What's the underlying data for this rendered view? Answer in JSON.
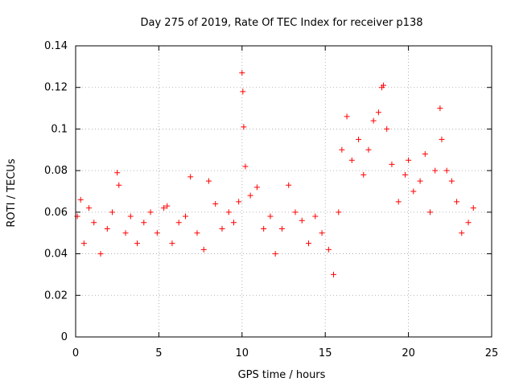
{
  "chart_data": {
    "type": "scatter",
    "title": "Day 275 of 2019, Rate Of TEC Index for receiver p138",
    "xlabel": "GPS time / hours",
    "ylabel": "ROTI / TECUs",
    "xlim": [
      0,
      25
    ],
    "ylim": [
      0,
      0.14
    ],
    "xticks": [
      0,
      5,
      10,
      15,
      20,
      25
    ],
    "xtick_labels": [
      "0",
      "5",
      "10",
      "15",
      "20",
      "25"
    ],
    "yticks": [
      0,
      0.02,
      0.04,
      0.06,
      0.08,
      0.1,
      0.12,
      0.14
    ],
    "ytick_labels": [
      "0",
      "0.02",
      "0.04",
      "0.06",
      "0.08",
      "0.1",
      "0.12",
      "0.14"
    ],
    "grid": true,
    "marker": "+",
    "color": "#ff0000",
    "series": [
      {
        "name": "ROTI",
        "x": [
          0.1,
          0.3,
          0.5,
          0.8,
          1.1,
          1.5,
          1.9,
          2.2,
          2.5,
          2.6,
          3.0,
          3.3,
          3.7,
          4.1,
          4.5,
          4.9,
          5.3,
          5.5,
          5.8,
          6.2,
          6.6,
          6.9,
          7.3,
          7.7,
          8.0,
          8.4,
          8.8,
          9.2,
          9.5,
          9.8,
          10.0,
          10.05,
          10.1,
          10.2,
          10.5,
          10.9,
          11.3,
          11.7,
          12.0,
          12.4,
          12.8,
          13.2,
          13.6,
          14.0,
          14.4,
          14.8,
          15.2,
          15.5,
          15.8,
          16.0,
          16.3,
          16.6,
          17.0,
          17.3,
          17.6,
          17.9,
          18.2,
          18.4,
          18.5,
          18.7,
          19.0,
          19.4,
          19.8,
          20.0,
          20.3,
          20.7,
          21.0,
          21.3,
          21.6,
          21.9,
          22.0,
          22.3,
          22.6,
          22.9,
          23.2,
          23.6,
          23.9
        ],
        "y": [
          0.058,
          0.066,
          0.045,
          0.062,
          0.055,
          0.04,
          0.052,
          0.06,
          0.079,
          0.073,
          0.05,
          0.058,
          0.045,
          0.055,
          0.06,
          0.05,
          0.062,
          0.063,
          0.045,
          0.055,
          0.058,
          0.077,
          0.05,
          0.042,
          0.075,
          0.064,
          0.052,
          0.06,
          0.055,
          0.065,
          0.127,
          0.118,
          0.101,
          0.082,
          0.068,
          0.072,
          0.052,
          0.058,
          0.04,
          0.052,
          0.073,
          0.06,
          0.056,
          0.045,
          0.058,
          0.05,
          0.042,
          0.03,
          0.06,
          0.09,
          0.106,
          0.085,
          0.095,
          0.078,
          0.09,
          0.104,
          0.108,
          0.12,
          0.121,
          0.1,
          0.083,
          0.065,
          0.078,
          0.085,
          0.07,
          0.075,
          0.088,
          0.06,
          0.08,
          0.11,
          0.095,
          0.08,
          0.075,
          0.065,
          0.05,
          0.055,
          0.062
        ]
      }
    ]
  }
}
